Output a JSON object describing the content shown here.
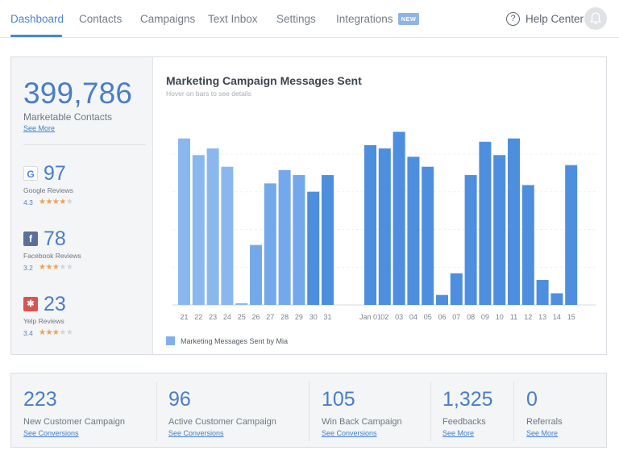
{
  "nav": {
    "tabs": [
      "Dashboard",
      "Contacts",
      "Campaigns",
      "Text Inbox",
      "Settings",
      "Integrations"
    ],
    "new_badge": "NEW",
    "help_icon": "?",
    "help_label": "Help Center"
  },
  "summary": {
    "contacts_value": "399,786",
    "contacts_label": "Marketable Contacts",
    "contacts_link": "See More"
  },
  "reviews": [
    {
      "source": "Google",
      "icon_glyph": "G",
      "icon_color": "#4285f4",
      "count": "97",
      "label": "Google Reviews",
      "rating": "4.3",
      "stars": 4.3
    },
    {
      "source": "Facebook",
      "icon_glyph": "f",
      "icon_color": "#5a6f9c",
      "count": "78",
      "label": "Facebook Reviews",
      "rating": "3.2",
      "stars": 3.2
    },
    {
      "source": "Yelp",
      "icon_glyph": "✱",
      "icon_color": "#d9534f",
      "count": "23",
      "label": "Yelp Reviews",
      "rating": "3.4",
      "stars": 3.4
    }
  ],
  "chart": {
    "title": "Marketing Campaign Messages Sent",
    "subtitle": "Hover on bars to see details",
    "legend_label": "Marketing Messages Sent  by Mia"
  },
  "chart_data": {
    "type": "bar",
    "title": "Marketing Campaign Messages Sent",
    "groups": [
      {
        "categories": [
          "21",
          "22",
          "23",
          "24",
          "25",
          "26",
          "27",
          "28",
          "29",
          "30",
          "31"
        ],
        "values": [
          100,
          90,
          94,
          83,
          1,
          36,
          73,
          81,
          78,
          68,
          78
        ]
      },
      {
        "categories": [
          "Jan 01",
          "02",
          "03",
          "04",
          "05",
          "06",
          "07",
          "08",
          "09",
          "10",
          "11",
          "12",
          "13",
          "14",
          "15"
        ],
        "values": [
          96,
          94,
          104,
          89,
          83,
          6,
          19,
          78,
          98,
          90,
          100,
          72,
          15,
          7,
          84
        ]
      }
    ],
    "ylim": [
      0,
      110
    ],
    "grid": true,
    "legend_position": "bottom-left",
    "colors": {
      "light": "#8ab8ee",
      "dark": "#4e8ede"
    }
  },
  "stats": [
    {
      "value": "223",
      "label": "New Customer Campaign",
      "link": "See Conversions"
    },
    {
      "value": "96",
      "label": "Active Customer Campaign",
      "link": "See Conversions"
    },
    {
      "value": "105",
      "label": "Win Back Campaign",
      "link": "See Conversions"
    },
    {
      "value": "1,325",
      "label": "Feedbacks",
      "link": "See More"
    },
    {
      "value": "0",
      "label": "Referrals",
      "link": "See More"
    }
  ]
}
